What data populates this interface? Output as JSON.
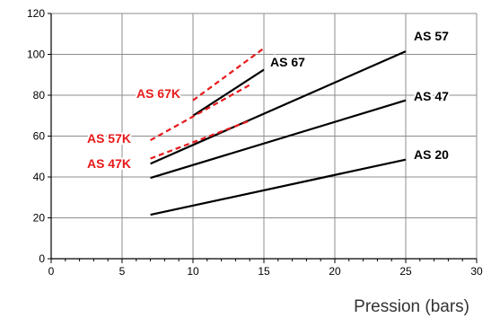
{
  "chart_data": {
    "type": "line",
    "title": "",
    "xlabel": "Pression (bars)",
    "ylabel": "",
    "xlim": [
      0,
      30
    ],
    "ylim": [
      0,
      120
    ],
    "x_ticks": [
      0,
      5,
      10,
      15,
      20,
      25,
      30
    ],
    "y_ticks": [
      0,
      20,
      40,
      60,
      80,
      100,
      120
    ],
    "grid": true,
    "series": [
      {
        "name": "AS 20",
        "color": "#000000",
        "style": "solid",
        "x": [
          7,
          25
        ],
        "y": [
          21.5,
          48.5
        ]
      },
      {
        "name": "AS 47",
        "color": "#000000",
        "style": "solid",
        "x": [
          7,
          25
        ],
        "y": [
          39.5,
          77.5
        ]
      },
      {
        "name": "AS 57",
        "color": "#000000",
        "style": "solid",
        "x": [
          7,
          25
        ],
        "y": [
          46.5,
          101.5
        ]
      },
      {
        "name": "AS 67",
        "color": "#000000",
        "style": "solid",
        "x": [
          10,
          15
        ],
        "y": [
          70,
          92.5
        ]
      },
      {
        "name": "AS 47K",
        "color": "#e8191a",
        "style": "dashed",
        "x": [
          7,
          14
        ],
        "y": [
          49,
          67.5
        ]
      },
      {
        "name": "AS 57K",
        "color": "#e8191a",
        "style": "dashed",
        "x": [
          7,
          14
        ],
        "y": [
          58,
          85
        ]
      },
      {
        "name": "AS 67K",
        "color": "#e8191a",
        "style": "dashed",
        "x": [
          10,
          15
        ],
        "y": [
          77.5,
          103
        ]
      }
    ]
  }
}
